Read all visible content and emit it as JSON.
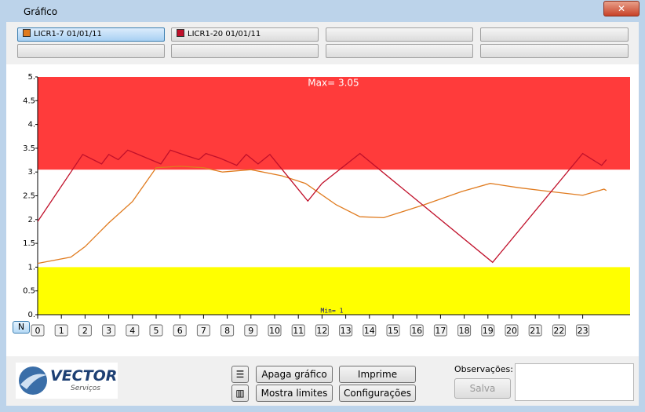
{
  "window_title": "Gráfico",
  "chart_data": {
    "type": "line",
    "xlim": [
      0,
      25
    ],
    "ylim": [
      0,
      5
    ],
    "xticks": [
      0,
      1,
      2,
      3,
      4,
      5,
      6,
      7,
      8,
      9,
      10,
      11,
      12,
      13,
      14,
      15,
      16,
      17,
      18,
      19,
      20,
      21,
      22,
      23
    ],
    "yticks": [
      {
        "value": 0,
        "label": "0."
      },
      {
        "value": 0.5,
        "label": "0.5"
      },
      {
        "value": 1,
        "label": "1."
      },
      {
        "value": 1.5,
        "label": "1.5"
      },
      {
        "value": 2,
        "label": "2."
      },
      {
        "value": 2.5,
        "label": "2.5"
      },
      {
        "value": 3,
        "label": "3."
      },
      {
        "value": 3.5,
        "label": "3.5"
      },
      {
        "value": 4,
        "label": "4."
      },
      {
        "value": 4.5,
        "label": "4.5"
      },
      {
        "value": 5,
        "label": "5."
      }
    ],
    "limits": {
      "max": 3.05,
      "max_label": "Max= 3.05",
      "max_color": "#ff3b3b",
      "min": 1,
      "min_label": "Min= 1",
      "min_color": "#ffff00"
    },
    "series": [
      {
        "name": "LICR1-7 01/01/11",
        "color": "#e07b1f",
        "x": [
          0,
          1.4,
          2,
          3,
          4,
          5,
          6,
          7,
          7.8,
          9,
          10.3,
          11.3,
          12.6,
          13.6,
          14.6,
          16.3,
          17.9,
          19.1,
          20.3,
          21.6,
          23,
          23.9,
          24
        ],
        "values": [
          1.08,
          1.21,
          1.43,
          1.93,
          2.38,
          3.09,
          3.12,
          3.09,
          3.0,
          3.05,
          2.92,
          2.76,
          2.31,
          2.06,
          2.04,
          2.31,
          2.59,
          2.76,
          2.67,
          2.59,
          2.51,
          2.64,
          2.61
        ]
      },
      {
        "name": "LICR1-20 01/01/11",
        "color": "#c0102a",
        "x": [
          0,
          1.9,
          2.7,
          3,
          3.4,
          3.8,
          5.2,
          5.6,
          6.3,
          6.8,
          7.1,
          7.7,
          8.4,
          8.8,
          9.3,
          9.8,
          11.4,
          12,
          13.6,
          19.2,
          23,
          23.8,
          24
        ],
        "values": [
          1.96,
          3.37,
          3.17,
          3.37,
          3.26,
          3.46,
          3.17,
          3.46,
          3.34,
          3.26,
          3.39,
          3.29,
          3.14,
          3.37,
          3.17,
          3.37,
          2.39,
          2.76,
          3.39,
          1.1,
          3.39,
          3.14,
          3.26
        ]
      }
    ]
  },
  "controls": {
    "n_button": "N",
    "clear": "Apaga gráfico",
    "print": "Imprime",
    "limits": "Mostra limites",
    "settings": "Configurações",
    "notes_label": "Observações:",
    "save": "Salva"
  },
  "logo": {
    "name": "VECTOR",
    "sub": "Serviços"
  }
}
